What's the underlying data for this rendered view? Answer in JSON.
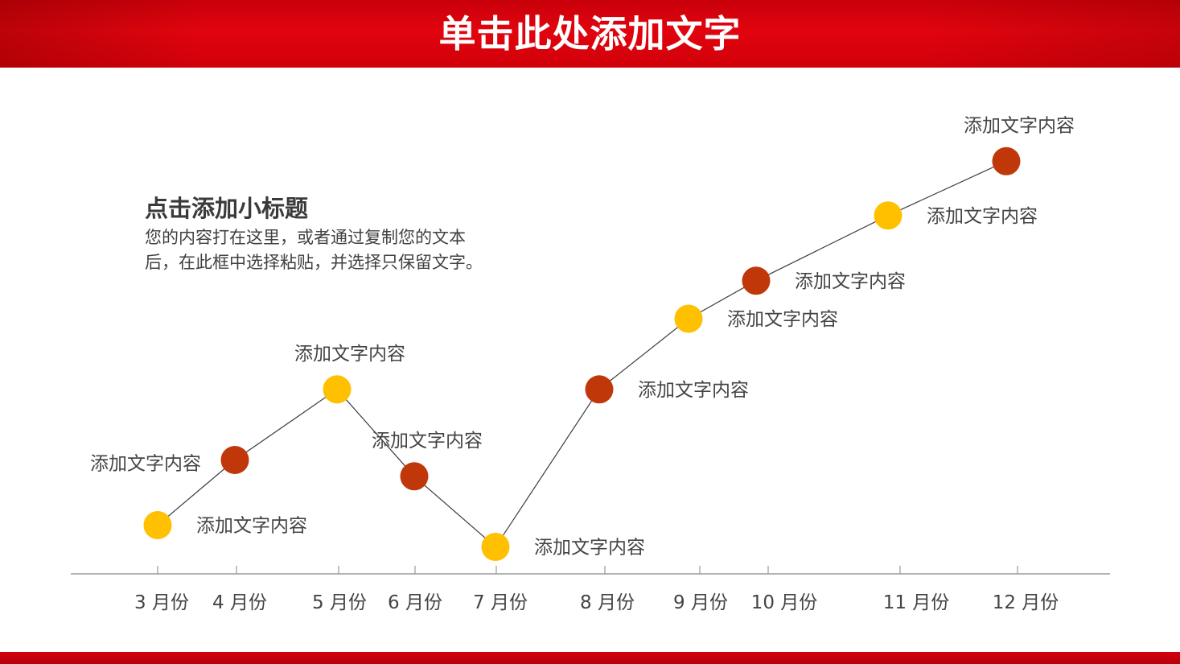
{
  "header": {
    "title": "单击此处添加文字"
  },
  "content": {
    "subtitle": "点击添加小标题",
    "body_lines": [
      "您的内容打在这里，或者通过复制您的文本",
      "后，在此框中选择粘贴，并选择只保留文字。"
    ]
  },
  "colors": {
    "header_red": "#d8000c",
    "marker_yellow": "#ffc000",
    "marker_red": "#c0380a",
    "line": "#3c3c3c",
    "axis": "#9a9a9a"
  },
  "chart_data": {
    "type": "line",
    "categories": [
      "3 月份",
      "4 月份",
      "5 月份",
      "6 月份",
      "7 月份",
      "8 月份",
      "9 月份",
      "10 月份",
      "11 月份",
      "12 月份"
    ],
    "values": [
      1.0,
      2.2,
      3.5,
      1.9,
      0.6,
      3.5,
      4.8,
      5.5,
      6.7,
      7.7
    ],
    "labels": [
      "添加文字内容",
      "添加文字内容",
      "添加文字内容",
      "添加文字内容",
      "添加文字内容",
      "添加文字内容",
      "添加文字内容",
      "添加文字内容",
      "添加文字内容",
      "添加文字内容"
    ],
    "marker_colors": [
      "yellow",
      "red",
      "yellow",
      "red",
      "yellow",
      "red",
      "yellow",
      "red",
      "yellow",
      "red"
    ],
    "title": "",
    "xlabel": "",
    "ylabel": "",
    "grid": false
  }
}
